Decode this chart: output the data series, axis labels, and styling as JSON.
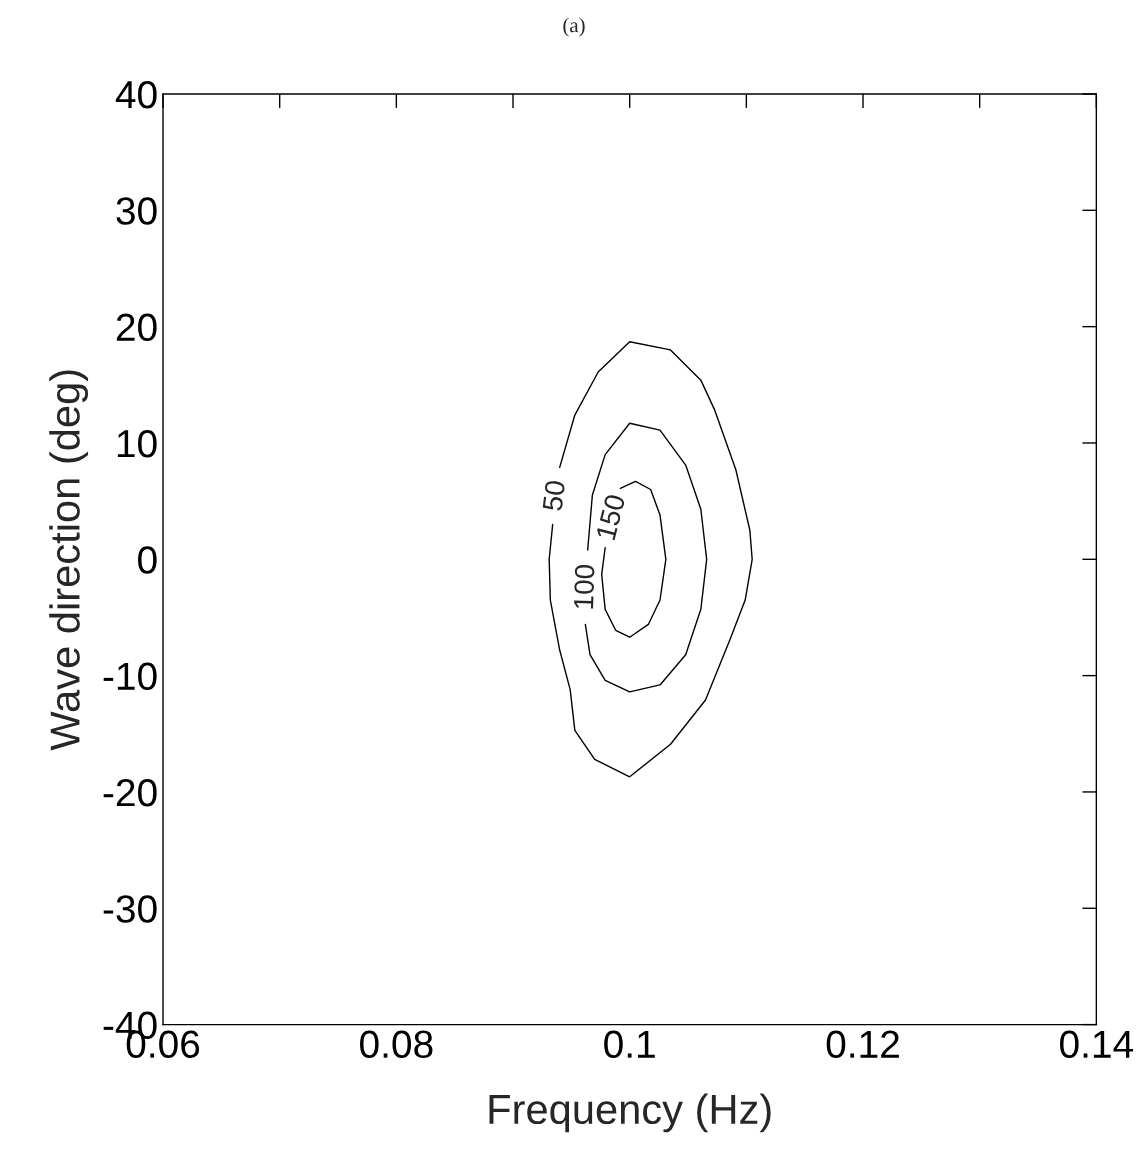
{
  "chart_data": {
    "type": "line",
    "title": "(a)",
    "xlabel": "Frequency (Hz)",
    "ylabel": "Wave direction (deg)",
    "xlim": [
      0.06,
      0.14
    ],
    "ylim": [
      -40,
      40
    ],
    "xticks": [
      0.06,
      {
        "value": 0.07,
        "label": null
      },
      0.08,
      {
        "value": 0.09,
        "label": null
      },
      0.1,
      {
        "value": 0.11,
        "label": null
      },
      0.12,
      {
        "value": 0.13,
        "label": null
      },
      0.14
    ],
    "yticks": [
      -40,
      -30,
      -20,
      -10,
      0,
      10,
      20,
      30,
      40
    ],
    "grid": false,
    "legend": false,
    "series": [
      {
        "name": "50",
        "color": "#000000",
        "x": [
          0.094,
          0.0953,
          0.0973,
          0.1,
          0.1035,
          0.1061,
          0.1073,
          0.1091,
          0.1103,
          0.1105,
          0.1099,
          0.1086,
          0.1065,
          0.1035,
          0.1,
          0.097,
          0.0953,
          0.0949,
          0.094,
          0.0932,
          0.0931,
          0.0934
        ],
        "values": [
          7.9,
          12.4,
          16.1,
          18.7,
          18.0,
          15.4,
          12.8,
          7.7,
          2.5,
          0,
          -3.5,
          -6.9,
          -12.1,
          -15.9,
          -18.7,
          -17.2,
          -14.7,
          -11.2,
          -7.8,
          -3.5,
          0,
          3.0
        ]
      },
      {
        "name": "100",
        "color": "#000000",
        "x": [
          0.0964,
          0.0968,
          0.0979,
          0.1,
          0.1026,
          0.1048,
          0.1061,
          0.1066,
          0.1061,
          0.1048,
          0.1026,
          0.1,
          0.0979,
          0.0966,
          0.0962
        ],
        "values": [
          0.8,
          5.5,
          9.0,
          11.7,
          11.1,
          8.1,
          4.3,
          0,
          -4.3,
          -8.2,
          -10.8,
          -11.4,
          -10.4,
          -8.2,
          -5.6
        ]
      },
      {
        "name": "150",
        "color": "#000000",
        "x": [
          0.0992,
          0.1005,
          0.1018,
          0.1026,
          0.1031,
          0.1026,
          0.1016,
          0.1,
          0.0988,
          0.0979,
          0.0976,
          0.0979
        ],
        "values": [
          6.1,
          6.7,
          6.0,
          3.8,
          0,
          -3.5,
          -5.6,
          -6.7,
          -6.1,
          -4.3,
          -1.3,
          1.0
        ]
      }
    ]
  }
}
